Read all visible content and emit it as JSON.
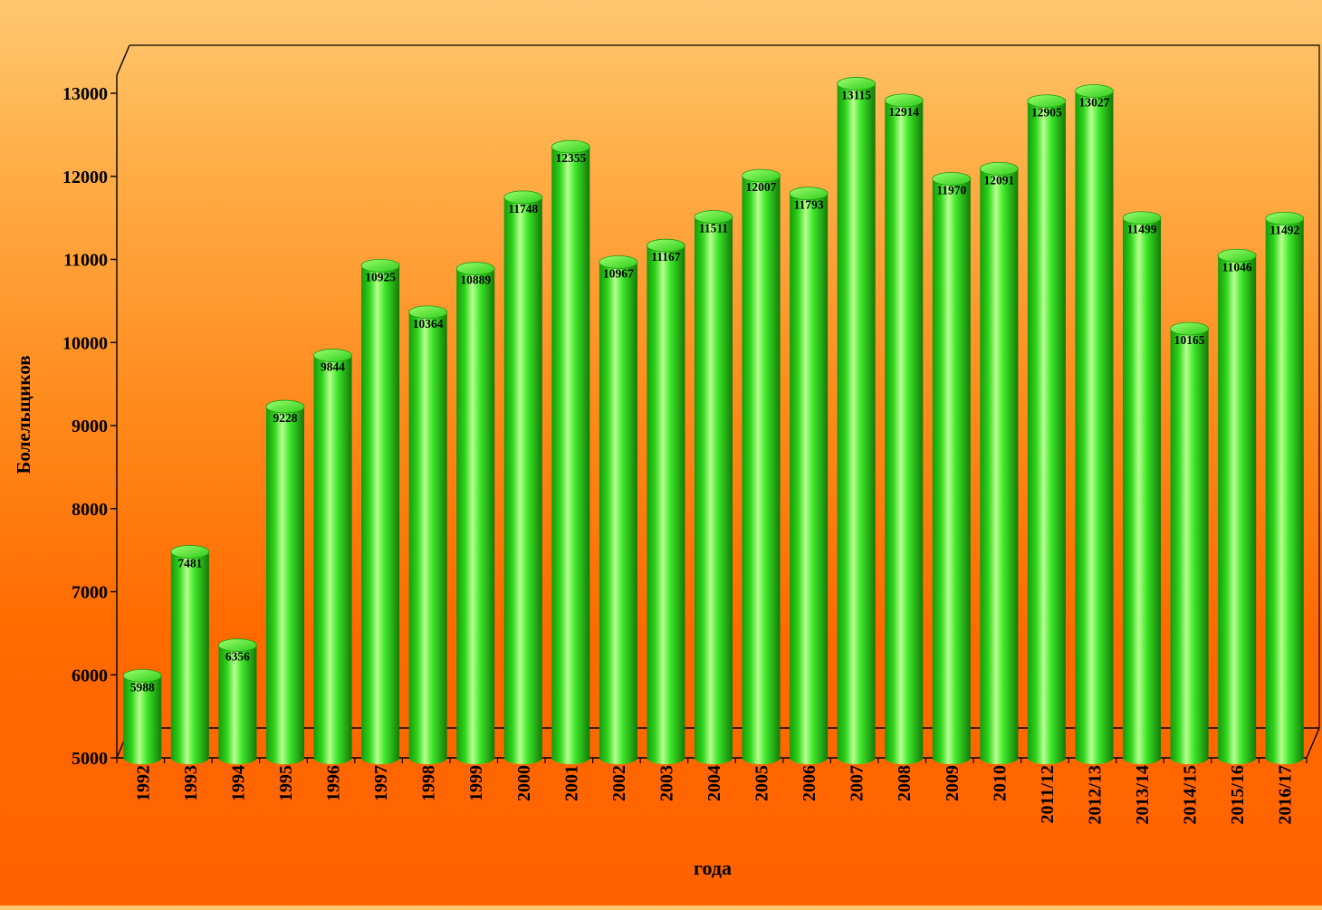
{
  "chart_data": {
    "type": "bar",
    "title": "",
    "xlabel": "года",
    "ylabel": "Болельщиков",
    "ylim": [
      5000,
      13000
    ],
    "yticks": [
      5000,
      6000,
      7000,
      8000,
      9000,
      10000,
      11000,
      12000,
      13000
    ],
    "grid": false,
    "bar_style": "3d-cylinder",
    "colors": {
      "bar": "#33dd22",
      "bar_highlight": "#b8ff90",
      "bar_shadow": "#148a08",
      "axis": "#000000"
    },
    "categories": [
      "1992",
      "1993",
      "1994",
      "1995",
      "1996",
      "1997",
      "1998",
      "1999",
      "2000",
      "2001",
      "2002",
      "2003",
      "2004",
      "2005",
      "2006",
      "2007",
      "2008",
      "2009",
      "2010",
      "2011/12",
      "2012/13",
      "2013/14",
      "2014/15",
      "2015/16",
      "2016/17"
    ],
    "values": [
      5988,
      7481,
      6356,
      9228,
      9844,
      10925,
      10364,
      10889,
      11748,
      12355,
      10967,
      11167,
      11511,
      12007,
      11793,
      13115,
      12914,
      11970,
      12091,
      12905,
      13027,
      11499,
      10165,
      11046,
      11492
    ]
  }
}
